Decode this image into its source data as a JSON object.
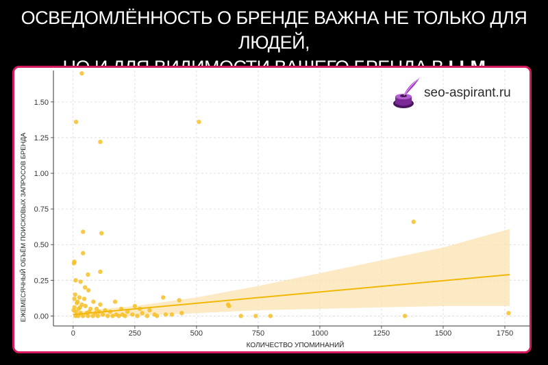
{
  "headline": {
    "line1": "ОСВЕДОМЛЁННОСТЬ О БРЕНДЕ ВАЖНА НЕ ТОЛЬКО ДЛЯ ЛЮДЕЙ,",
    "line2_prefix": "НО И ДЛЯ ВИДИМОСТИ ВАШЕГО БРЕНДА В ",
    "line2_strong": "LLM"
  },
  "logo": {
    "text": "seo-aspirant.ru",
    "icon": "inkwell-quill-icon"
  },
  "colors": {
    "frame": "#d6195e",
    "points": "#f6c026",
    "trend": "#f2b705",
    "band": "#fbe3b0"
  },
  "chart_data": {
    "type": "scatter",
    "xlabel": "КОЛИЧЕСТВО УПОМИНАНИЙ",
    "ylabel": "ЕЖЕМЕСЯЧНЫЙ ОБЪЁМ ПОИСКОВЫХ ЗАПРОСОВ БРЕНДА",
    "xlim": [
      -80,
      1850
    ],
    "ylim": [
      -0.07,
      1.72
    ],
    "xticks": [
      0,
      250,
      500,
      750,
      1000,
      1250,
      1500,
      1750
    ],
    "xtick_labels": [
      "0",
      "250",
      "500",
      "750",
      "1000",
      "1250",
      "1500",
      "1750"
    ],
    "yticks": [
      0.0,
      0.25,
      0.5,
      0.75,
      1.0,
      1.25,
      1.5
    ],
    "ytick_labels": [
      "0.00",
      "0.25",
      "0.50",
      "0.75",
      "1.00",
      "1.25",
      "1.50"
    ],
    "grid": true,
    "trend_line": {
      "x": [
        0,
        1770
      ],
      "y": [
        0.01,
        0.29
      ]
    },
    "confidence_band": {
      "x": [
        0,
        250,
        500,
        750,
        1000,
        1250,
        1500,
        1770
      ],
      "upper": [
        0.03,
        0.07,
        0.13,
        0.21,
        0.3,
        0.39,
        0.48,
        0.61
      ],
      "lower": [
        -0.01,
        0.0,
        0.02,
        0.04,
        0.05,
        0.06,
        0.07,
        0.07
      ]
    },
    "points": [
      {
        "x": 35,
        "y": 1.7
      },
      {
        "x": 12,
        "y": 1.36
      },
      {
        "x": 510,
        "y": 1.36
      },
      {
        "x": 110,
        "y": 1.22
      },
      {
        "x": 1380,
        "y": 0.66
      },
      {
        "x": 40,
        "y": 0.59
      },
      {
        "x": 115,
        "y": 0.58
      },
      {
        "x": 40,
        "y": 0.44
      },
      {
        "x": 5,
        "y": 0.38
      },
      {
        "x": 3,
        "y": 0.37
      },
      {
        "x": 110,
        "y": 0.31
      },
      {
        "x": 60,
        "y": 0.29
      },
      {
        "x": 10,
        "y": 0.25
      },
      {
        "x": 30,
        "y": 0.24
      },
      {
        "x": 48,
        "y": 0.2
      },
      {
        "x": 62,
        "y": 0.18
      },
      {
        "x": 8,
        "y": 0.15
      },
      {
        "x": 25,
        "y": 0.13
      },
      {
        "x": 5,
        "y": 0.12
      },
      {
        "x": 45,
        "y": 0.12
      },
      {
        "x": 365,
        "y": 0.13
      },
      {
        "x": 430,
        "y": 0.11
      },
      {
        "x": 170,
        "y": 0.1
      },
      {
        "x": 82,
        "y": 0.1
      },
      {
        "x": 15,
        "y": 0.09
      },
      {
        "x": 35,
        "y": 0.08
      },
      {
        "x": 110,
        "y": 0.08
      },
      {
        "x": 250,
        "y": 0.07
      },
      {
        "x": 628,
        "y": 0.08
      },
      {
        "x": 632,
        "y": 0.07
      },
      {
        "x": 195,
        "y": 0.05
      },
      {
        "x": 270,
        "y": 0.05
      },
      {
        "x": 310,
        "y": 0.04
      },
      {
        "x": 22,
        "y": 0.05
      },
      {
        "x": 70,
        "y": 0.05
      },
      {
        "x": 130,
        "y": 0.04
      },
      {
        "x": 150,
        "y": 0.03
      },
      {
        "x": 220,
        "y": 0.03
      },
      {
        "x": 2,
        "y": 0.04
      },
      {
        "x": 12,
        "y": 0.03
      },
      {
        "x": 30,
        "y": 0.02
      },
      {
        "x": 55,
        "y": 0.02
      },
      {
        "x": 90,
        "y": 0.02
      },
      {
        "x": 120,
        "y": 0.01
      },
      {
        "x": 175,
        "y": 0.01
      },
      {
        "x": 200,
        "y": 0.01
      },
      {
        "x": 240,
        "y": 0.01
      },
      {
        "x": 280,
        "y": 0.02
      },
      {
        "x": 330,
        "y": 0.01
      },
      {
        "x": 375,
        "y": 0.01
      },
      {
        "x": 400,
        "y": 0.01
      },
      {
        "x": 440,
        "y": 0.02
      },
      {
        "x": 10,
        "y": 0.0
      },
      {
        "x": 20,
        "y": 0.0
      },
      {
        "x": 40,
        "y": 0.0
      },
      {
        "x": 60,
        "y": 0.0
      },
      {
        "x": 80,
        "y": 0.0
      },
      {
        "x": 100,
        "y": 0.0
      },
      {
        "x": 140,
        "y": 0.0
      },
      {
        "x": 160,
        "y": 0.0
      },
      {
        "x": 185,
        "y": 0.0
      },
      {
        "x": 210,
        "y": 0.0
      },
      {
        "x": 260,
        "y": 0.0
      },
      {
        "x": 300,
        "y": 0.0
      },
      {
        "x": 340,
        "y": 0.0
      },
      {
        "x": 680,
        "y": 0.0
      },
      {
        "x": 740,
        "y": 0.0
      },
      {
        "x": 800,
        "y": 0.0
      },
      {
        "x": 1345,
        "y": 0.0
      },
      {
        "x": 1765,
        "y": 0.02
      },
      {
        "x": 5,
        "y": 0.06
      },
      {
        "x": 18,
        "y": 0.1
      },
      {
        "x": 28,
        "y": 0.06
      },
      {
        "x": 50,
        "y": 0.07
      },
      {
        "x": 95,
        "y": 0.05
      },
      {
        "x": 65,
        "y": 0.03
      },
      {
        "x": 105,
        "y": 0.03
      }
    ]
  }
}
